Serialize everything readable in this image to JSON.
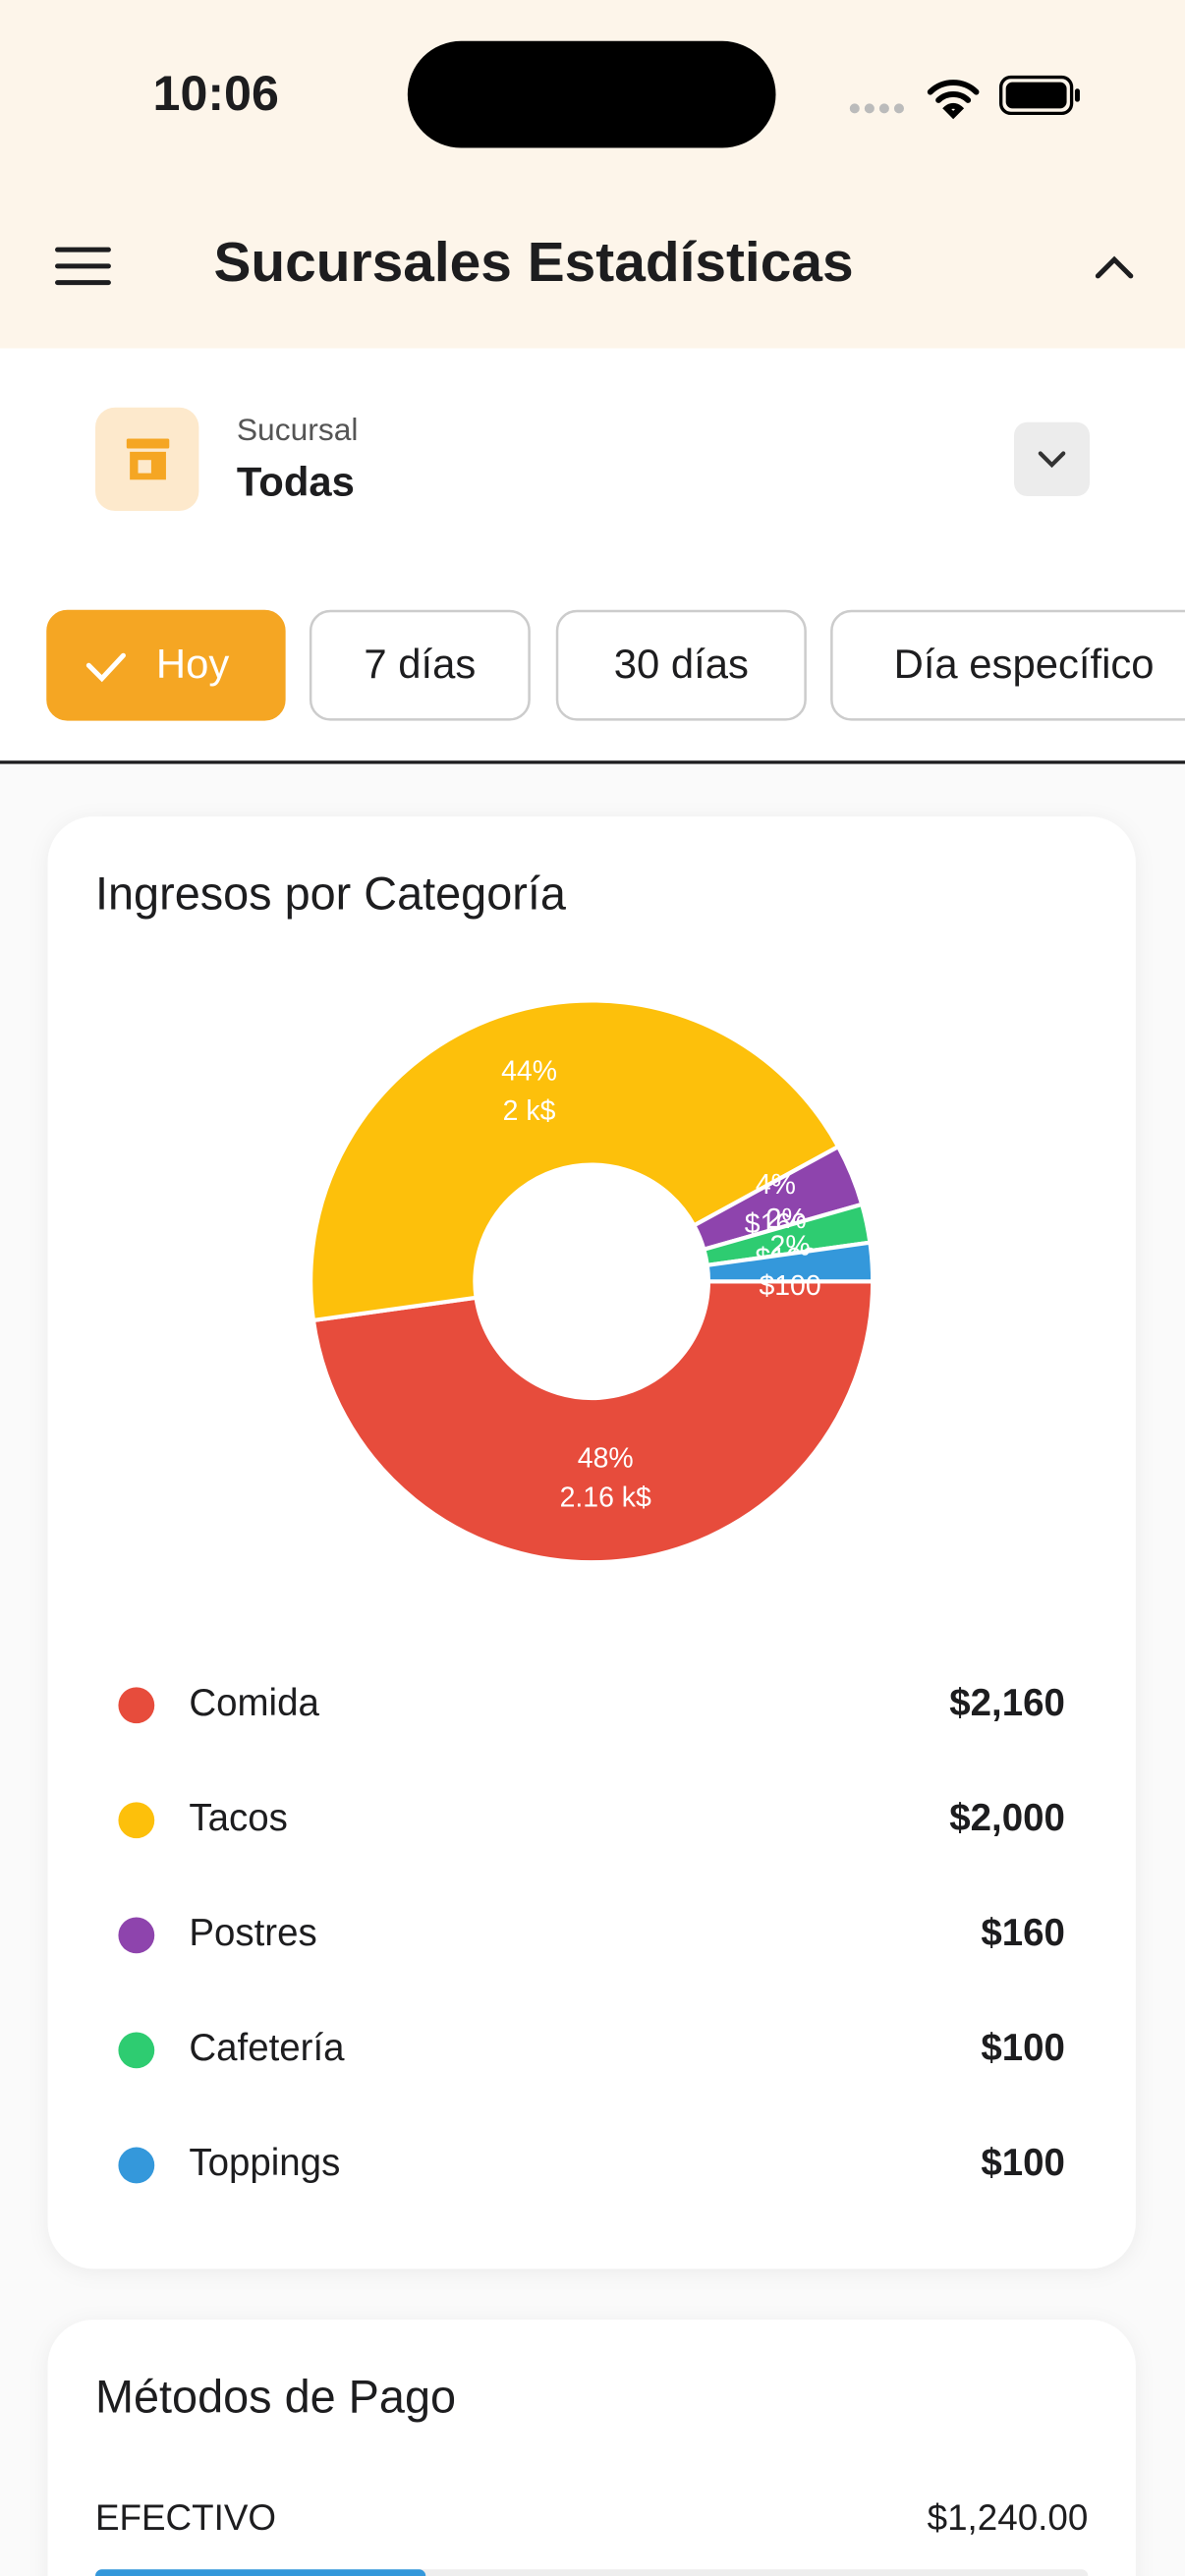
{
  "status_bar": {
    "time": "10:06"
  },
  "header": {
    "title": "Sucursales Estadísticas"
  },
  "branch": {
    "label": "Sucursal",
    "value": "Todas"
  },
  "filters": [
    "Hoy",
    "7 días",
    "30 días",
    "Día específico"
  ],
  "chart_data": {
    "type": "pie",
    "title": "Ingresos por Categoría",
    "categories": [
      "Comida",
      "Tacos",
      "Postres",
      "Cafetería",
      "Toppings"
    ],
    "values": [
      2160,
      2000,
      160,
      100,
      100
    ],
    "value_labels": [
      "$2,160",
      "$2,000",
      "$160",
      "$100",
      "$100"
    ],
    "slice_labels": [
      [
        "48%",
        "2.16 k$"
      ],
      [
        "44%",
        "2 k$"
      ],
      [
        "4%",
        "$160"
      ],
      [
        "2%",
        "$100"
      ],
      [
        "2%",
        "$100"
      ]
    ],
    "colors": [
      "#e74c3c",
      "#fdc00b",
      "#8e44ad",
      "#2ecc71",
      "#3498db"
    ]
  },
  "payments": {
    "title": "Métodos de Pago",
    "rows": [
      {
        "method": "EFECTIVO",
        "amount": "$1,240.00"
      }
    ]
  }
}
